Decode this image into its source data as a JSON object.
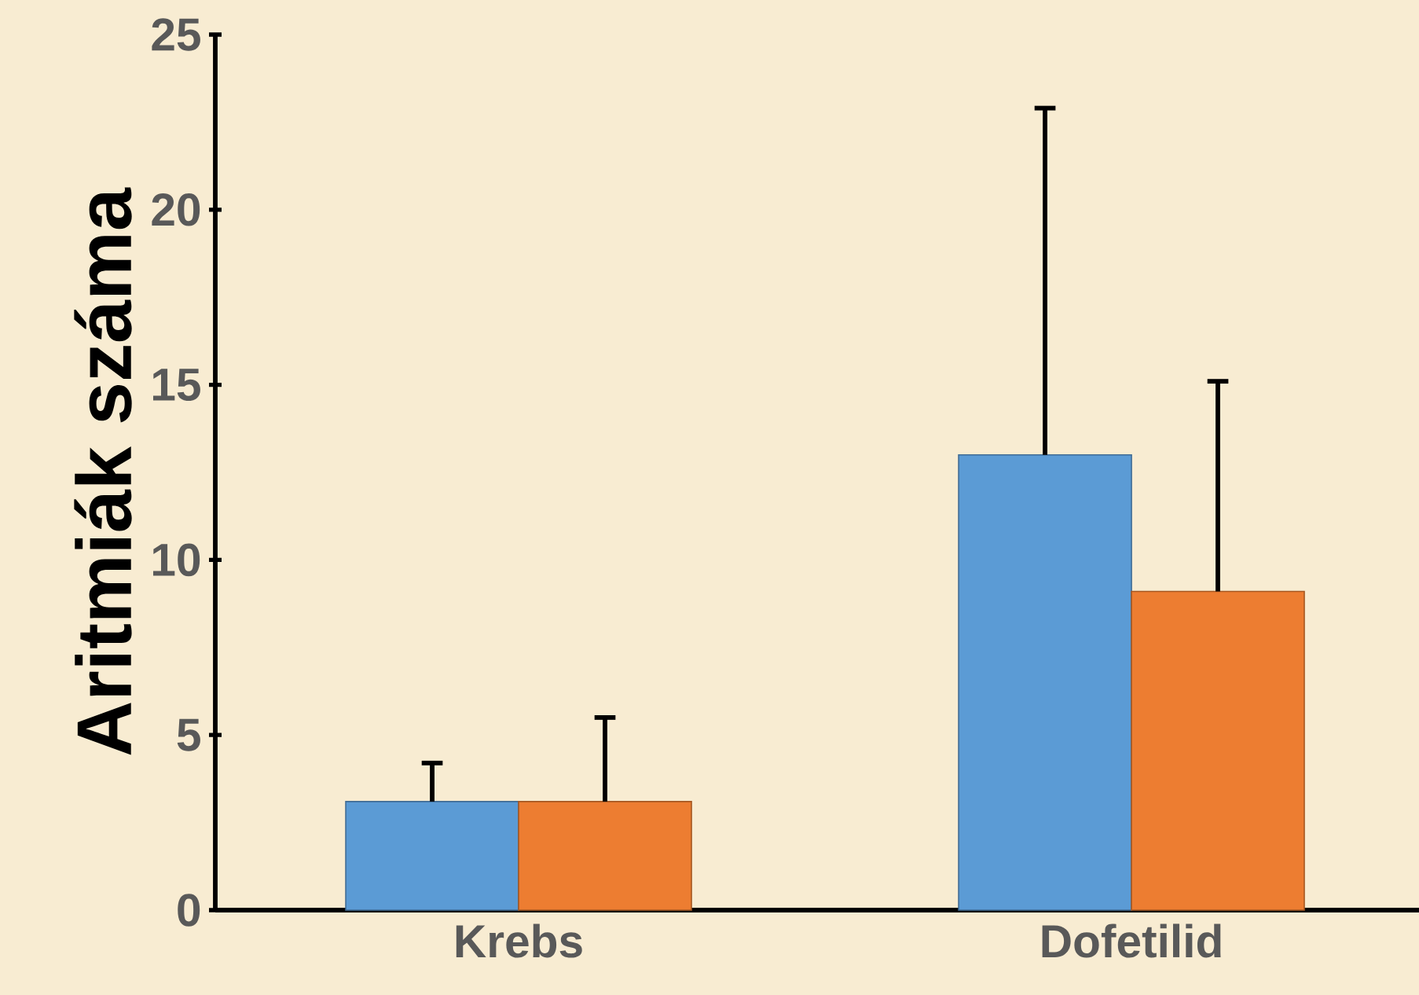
{
  "chart_data": {
    "type": "bar",
    "ylabel": "Aritmiák száma",
    "categories": [
      "Krebs",
      "Dofetilid"
    ],
    "series": [
      {
        "color": "#5b9bd5",
        "values": [
          3.1,
          13.0
        ],
        "errors": [
          [
            3.1,
            4.2
          ],
          [
            13.0,
            22.9
          ]
        ]
      },
      {
        "color": "#ed7d31",
        "values": [
          3.1,
          9.1
        ],
        "errors": [
          [
            3.1,
            5.5
          ],
          [
            9.1,
            15.1
          ]
        ]
      }
    ],
    "ylim": [
      0,
      25
    ],
    "yticks": [
      0,
      5,
      10,
      15,
      20,
      25
    ],
    "grid": false
  }
}
